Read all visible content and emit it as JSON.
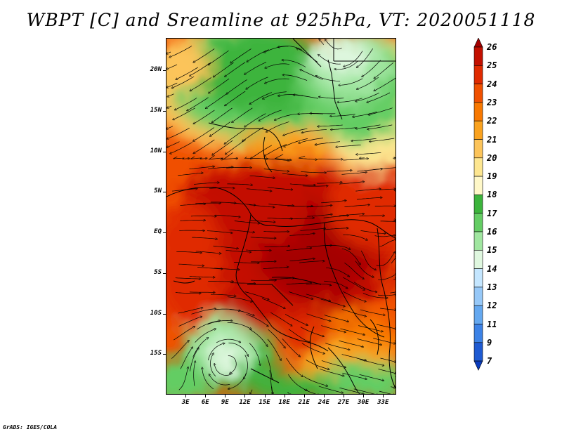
{
  "title": "WBPT [C] and Sreamline at 925hPa, VT: 2020051118",
  "credit": "GrADS: IGES/COLA",
  "map": {
    "variable": "WBPT",
    "units": "C",
    "level": "925hPa",
    "valid_time": "2020051118",
    "lon_range": [
      0,
      35
    ],
    "lat_range": [
      -20,
      24
    ],
    "lat_labels": [
      "20N",
      "15N",
      "10N",
      "5N",
      "EQ",
      "5S",
      "10S",
      "15S"
    ],
    "lat_values": [
      20,
      15,
      10,
      5,
      0,
      -5,
      -10,
      -15
    ],
    "lon_labels": [
      "3E",
      "6E",
      "9E",
      "12E",
      "15E",
      "18E",
      "21E",
      "24E",
      "27E",
      "30E",
      "33E"
    ],
    "lon_values": [
      3,
      6,
      9,
      12,
      15,
      18,
      21,
      24,
      27,
      30,
      33
    ]
  },
  "colorbar": {
    "labels": [
      "26",
      "25",
      "24",
      "23",
      "22",
      "21",
      "20",
      "19",
      "18",
      "17",
      "16",
      "15",
      "14",
      "13",
      "12",
      "11",
      "9",
      "7"
    ],
    "colors": [
      "#a50000",
      "#c31000",
      "#e02a00",
      "#f05000",
      "#f87800",
      "#faa21e",
      "#fcc45a",
      "#fde690",
      "#fff8c8",
      "#3cb43c",
      "#64cd64",
      "#a0e6a0",
      "#dff7df",
      "#c4e6ff",
      "#96c8f8",
      "#64a8f0",
      "#3c82e6",
      "#1e5ad2",
      "#0a3cbe"
    ]
  }
}
